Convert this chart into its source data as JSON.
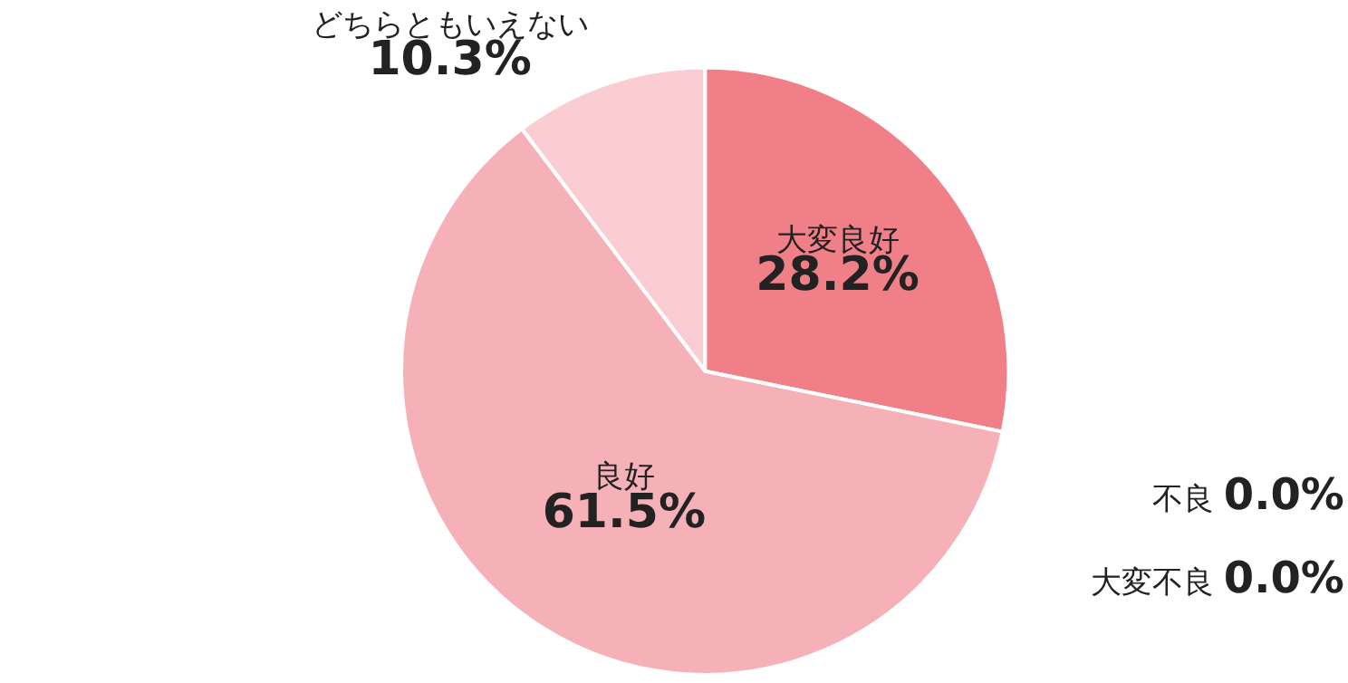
{
  "chart_data": {
    "type": "pie",
    "categories": [
      "大変良好",
      "不良",
      "大変不良",
      "良好",
      "どちらともいえない"
    ],
    "values": [
      28.2,
      0.0,
      0.0,
      61.5,
      10.3
    ],
    "colors": [
      "#f07f88",
      "#f07f88",
      "#f07f88",
      "#f6b1b8",
      "#f9cdd1"
    ],
    "value_labels": [
      "28.2%",
      "0.0%",
      "0.0%",
      "61.5%",
      "10.3%"
    ],
    "legend": false
  }
}
